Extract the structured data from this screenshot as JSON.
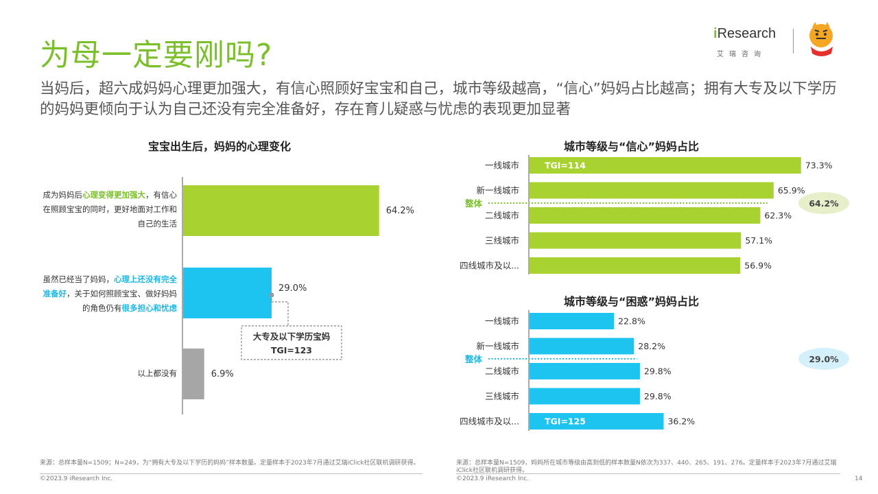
{
  "header": {
    "title": "为母一定要刚吗?",
    "subtitle": "当妈后，超六成妈妈心理更加强大，有信心照顾好宝宝和自己，城市等级越高，“信心”妈妈占比越高；拥有大专及以下学历的妈妈更倾向于认为自己还没有完全准备好，存在育儿疑惑与忧虑的表现更加显著",
    "logo_text_prefix": "i",
    "logo_text_rest": "Research",
    "logo_sub": "艾瑞咨询",
    "partner_logo": "巧虎"
  },
  "left_chart_labels": {
    "row1": {
      "a": "成为妈妈后",
      "b": "心理变得更加强大",
      "c": "，有信心在照顾宝宝的同时，更好地面对工作和自己的生活"
    },
    "row2": {
      "a": "虽然已经当了妈妈，",
      "b": "心理上还没有完全准备好",
      "c": "，关于如何照顾宝宝、做好妈妈的角色仍有",
      "d": "很多担心和忧虑"
    },
    "row3": "以上都没有",
    "callout_title": "大专及以下学历宝妈",
    "callout_tgi": "TGI=123"
  },
  "chart_data": [
    {
      "type": "bar",
      "title": "宝宝出生后，妈妈的心理变化",
      "categories": [
        "成为妈妈后心理变得更加强大，有信心在照顾宝宝的同时，更好地面对工作和自己的生活",
        "虽然已经当了妈妈，心理上还没有完全准备好，关于如何照顾宝宝、做好妈妈的角色仍有很多担心和忧虑",
        "以上都没有"
      ],
      "values": [
        64.2,
        29.0,
        6.9
      ],
      "value_labels": [
        "64.2%",
        "29.0%",
        "6.9%"
      ],
      "colors": [
        "#a8d22f",
        "#1dc4ef",
        "#a6a6a6"
      ]
    },
    {
      "type": "bar",
      "title": "城市等级与“信心”妈妈占比",
      "categories": [
        "一线城市",
        "新一线城市",
        "二线城市",
        "三线城市",
        "四线城市及以..."
      ],
      "values": [
        73.3,
        65.9,
        62.3,
        57.1,
        56.9
      ],
      "value_labels": [
        "73.3%",
        "65.9%",
        "62.3%",
        "57.1%",
        "56.9%"
      ],
      "color": "#a8d22f",
      "reference": {
        "label": "整体",
        "value": 64.2,
        "value_label": "64.2%",
        "color": "#7bbf2a",
        "bubble": "#e6efc9"
      },
      "tgi": {
        "category_index": 0,
        "text": "TGI=114"
      }
    },
    {
      "type": "bar",
      "title": "城市等级与“困惑”妈妈占比",
      "categories": [
        "一线城市",
        "新一线城市",
        "二线城市",
        "三线城市",
        "四线城市及以..."
      ],
      "values": [
        22.8,
        28.2,
        29.8,
        29.8,
        36.2
      ],
      "value_labels": [
        "22.8%",
        "28.2%",
        "29.8%",
        "29.8%",
        "36.2%"
      ],
      "color": "#1dc4ef",
      "reference": {
        "label": "整体",
        "value": 29.0,
        "value_label": "29.0%",
        "color": "#1bb8e4",
        "bubble": "#d4f1fb"
      },
      "tgi": {
        "category_index": 4,
        "text": "TGI=125"
      }
    }
  ],
  "footer": {
    "left_source": "来源：总样本量N=1509；N=249，为“拥有大专及以下学历的妈妈”样本数量。定量样本于2023年7月通过艾瑞iClick社区联机调研获得。",
    "left_copy": "©2023.9 iResearch Inc.",
    "right_source": "来源：总样本量N=1509，妈妈所在城市等级由高到低的样本数量N依次为337、440、265、191、276。定量样本于2023年7月通过艾瑞iClick社区联机调研获得。",
    "right_copy": "©2023.9 iResearch Inc.",
    "page": "14"
  }
}
